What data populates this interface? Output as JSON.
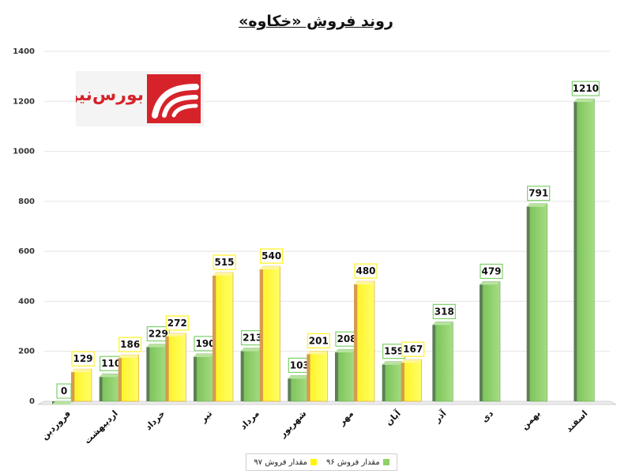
{
  "title": "روند فروش «خکاوه»",
  "logo": {
    "text": "بورس‌نیوز",
    "brand_color": "#d6232a"
  },
  "colors": {
    "series_96": "#8fd16a",
    "series_97": "#fff500"
  },
  "chart_data": {
    "type": "bar",
    "categories": [
      "فروردین",
      "اردیبهشت",
      "خرداد",
      "تیر",
      "مرداد",
      "شهریور",
      "مهر",
      "آبان",
      "آذر",
      "دی",
      "بهمن",
      "اسفند"
    ],
    "series": [
      {
        "name": "مقدار فروش ۹۶",
        "values": [
          0,
          110,
          229,
          190,
          213,
          103,
          208,
          159,
          318,
          479,
          791,
          1210
        ]
      },
      {
        "name": "مقدار فروش ۹۷",
        "values": [
          129,
          186,
          272,
          515,
          540,
          201,
          480,
          167,
          null,
          null,
          null,
          null
        ]
      }
    ],
    "yticks": [
      0,
      200,
      400,
      600,
      800,
      1000,
      1200,
      1400
    ],
    "ylim": [
      0,
      1400
    ],
    "grid": true,
    "legend_position": "bottom",
    "data_labels": true
  }
}
